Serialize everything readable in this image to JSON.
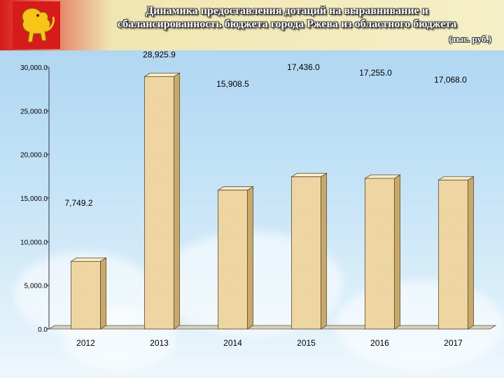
{
  "header": {
    "title_line1": "Динамика предоставления дотаций на выравнивание и",
    "title_line2": "сбалансированность бюджета города Ржева из областного бюджета",
    "unit": "(тыс. руб.)"
  },
  "colors": {
    "header_red": "#d81b1b",
    "bar_fill": "#f3dcaa",
    "bar_stroke": "#5a4a2a",
    "background": "#bfe0f6"
  },
  "chart_data": {
    "type": "bar",
    "categories": [
      "2012",
      "2013",
      "2014",
      "2015",
      "2016",
      "2017"
    ],
    "values": [
      7749.2,
      28925.9,
      15908.5,
      17436.0,
      17255.0,
      17068.0
    ],
    "value_labels": [
      "7,749.2",
      "28,925.9",
      "15,908.5",
      "17,436.0",
      "17,255.0",
      "17,068.0"
    ],
    "yticks": [
      "0.0",
      "5,000.0",
      "10,000.0",
      "15,000.0",
      "20,000.0",
      "25,000.0",
      "30,000.0"
    ],
    "ylim": [
      0,
      30000
    ],
    "grid": false,
    "title": "",
    "xlabel": "",
    "ylabel": ""
  }
}
